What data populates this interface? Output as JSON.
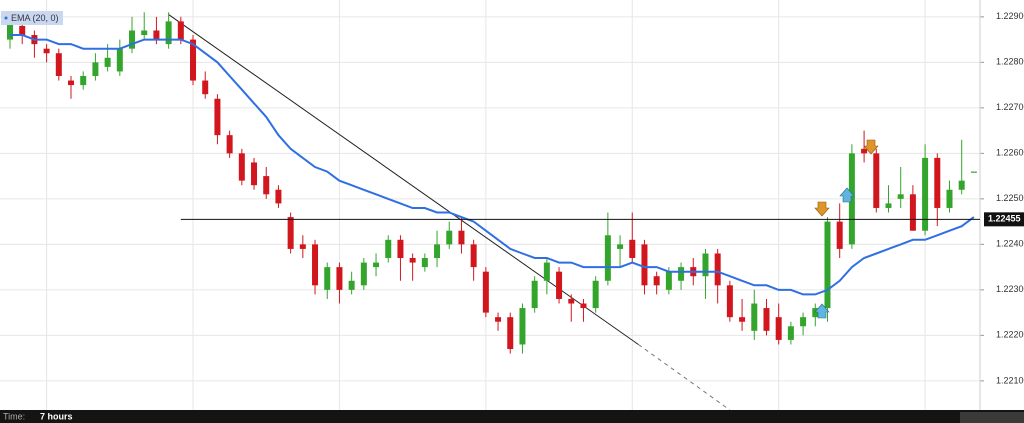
{
  "chart_data": {
    "type": "candlestick",
    "up_color": "#34a52c",
    "down_color": "#d2161e",
    "grid": true,
    "xlim": [
      -0.82,
      79.5
    ],
    "xticks": [
      3,
      15,
      27,
      39,
      51,
      63,
      75
    ],
    "ylim": [
      1.22036,
      1.22937
    ],
    "yticks": [
      {
        "value": 1.221,
        "label": "1.22100"
      },
      {
        "value": 1.222,
        "label": "1.22200"
      },
      {
        "value": 1.223,
        "label": "1.22300"
      },
      {
        "value": 1.224,
        "label": "1.22400"
      },
      {
        "value": 1.225,
        "label": "1.22500"
      },
      {
        "value": 1.226,
        "label": "1.22600"
      },
      {
        "value": 1.227,
        "label": "1.22700"
      },
      {
        "value": 1.228,
        "label": "1.22800"
      },
      {
        "value": 1.229,
        "label": "1.22900"
      }
    ],
    "open": [
      1.2285,
      1.2288,
      1.2286,
      1.2283,
      1.2282,
      1.2276,
      1.2275,
      1.2277,
      1.2279,
      1.2278,
      1.2283,
      1.2286,
      1.2287,
      1.2284,
      1.2289,
      1.2285,
      1.2276,
      1.2272,
      1.2264,
      1.226,
      1.2258,
      1.2255,
      1.2252,
      1.2246,
      1.224,
      1.224,
      1.223,
      1.2235,
      1.223,
      1.2231,
      1.2235,
      1.2237,
      1.2241,
      1.2237,
      1.2235,
      1.2237,
      1.224,
      1.2243,
      1.224,
      1.2234,
      1.2224,
      1.2224,
      1.2218,
      1.2226,
      1.2232,
      1.2234,
      1.2228,
      1.2227,
      1.2226,
      1.2232,
      1.2239,
      1.2241,
      1.224,
      1.2233,
      1.223,
      1.2232,
      1.2235,
      1.2233,
      1.2238,
      1.2231,
      1.2224,
      1.2221,
      1.2226,
      1.2224,
      1.2219,
      1.2222,
      1.2224,
      1.2226,
      1.2245,
      1.224,
      1.2261,
      1.226,
      1.2248,
      1.225,
      1.2251,
      1.2243,
      1.2259,
      1.2248,
      1.2252,
      1.2256
    ],
    "high": [
      1.229,
      1.2289,
      1.2287,
      1.2284,
      1.2283,
      1.2277,
      1.2278,
      1.2282,
      1.2284,
      1.2285,
      1.229,
      1.2291,
      1.229,
      1.2291,
      1.229,
      1.2286,
      1.2278,
      1.2273,
      1.2265,
      1.2261,
      1.2259,
      1.2257,
      1.2253,
      1.2247,
      1.2242,
      1.2241,
      1.2236,
      1.2236,
      1.2234,
      1.2237,
      1.2238,
      1.2242,
      1.2242,
      1.2238,
      1.2238,
      1.2243,
      1.2245,
      1.2246,
      1.2241,
      1.2235,
      1.2225,
      1.2225,
      1.2227,
      1.2233,
      1.2237,
      1.2235,
      1.2229,
      1.2228,
      1.2233,
      1.2247,
      1.2242,
      1.2247,
      1.2241,
      1.2234,
      1.2235,
      1.2236,
      1.2237,
      1.2239,
      1.2239,
      1.2232,
      1.2228,
      1.223,
      1.2228,
      1.2227,
      1.2223,
      1.2225,
      1.2227,
      1.2246,
      1.2249,
      1.2262,
      1.2265,
      1.2261,
      1.2253,
      1.2257,
      1.2253,
      1.2262,
      1.226,
      1.2254,
      1.2263,
      1.2256
    ],
    "low": [
      1.2283,
      1.2284,
      1.2281,
      1.228,
      1.2276,
      1.2272,
      1.2274,
      1.2276,
      1.2278,
      1.2277,
      1.2282,
      1.2285,
      1.2284,
      1.2283,
      1.2284,
      1.2275,
      1.2272,
      1.2262,
      1.2259,
      1.2253,
      1.2252,
      1.225,
      1.2248,
      1.2238,
      1.2237,
      1.2229,
      1.2228,
      1.2227,
      1.2229,
      1.223,
      1.2233,
      1.2236,
      1.2232,
      1.2232,
      1.2234,
      1.2235,
      1.2239,
      1.2238,
      1.2232,
      1.2224,
      1.2221,
      1.2216,
      1.2216,
      1.2225,
      1.2229,
      1.2227,
      1.2223,
      1.2223,
      1.2225,
      1.2231,
      1.2235,
      1.2236,
      1.2229,
      1.2229,
      1.2229,
      1.223,
      1.2231,
      1.2228,
      1.2227,
      1.2223,
      1.2221,
      1.2219,
      1.222,
      1.2218,
      1.2218,
      1.222,
      1.2222,
      1.2223,
      1.2237,
      1.2239,
      1.2258,
      1.2247,
      1.2247,
      1.2248,
      1.2243,
      1.2242,
      1.2244,
      1.2247,
      1.2251,
      1.2256
    ],
    "close": [
      1.2289,
      1.2286,
      1.2284,
      1.2282,
      1.2277,
      1.2275,
      1.2277,
      1.228,
      1.2281,
      1.2283,
      1.2287,
      1.2287,
      1.2285,
      1.2289,
      1.2285,
      1.2276,
      1.2273,
      1.2264,
      1.226,
      1.2254,
      1.2253,
      1.2251,
      1.2249,
      1.2239,
      1.2239,
      1.2231,
      1.2235,
      1.223,
      1.2232,
      1.2236,
      1.2236,
      1.2241,
      1.2237,
      1.2236,
      1.2237,
      1.224,
      1.2243,
      1.224,
      1.2235,
      1.2225,
      1.2223,
      1.2217,
      1.2226,
      1.2232,
      1.2236,
      1.2228,
      1.2227,
      1.2226,
      1.2232,
      1.2242,
      1.224,
      1.2237,
      1.2231,
      1.2231,
      1.2234,
      1.2235,
      1.2233,
      1.2238,
      1.2231,
      1.2224,
      1.2223,
      1.2227,
      1.2221,
      1.2219,
      1.2222,
      1.2224,
      1.2226,
      1.2245,
      1.2239,
      1.226,
      1.226,
      1.2248,
      1.2249,
      1.2251,
      1.2243,
      1.2259,
      1.2248,
      1.2252,
      1.2254,
      1.2256
    ],
    "indicators": [
      {
        "name": "EMA (20, 0)",
        "color": "#2f6fe4",
        "values": [
          1.2286,
          1.2286,
          1.2285,
          1.2285,
          1.2284,
          1.2284,
          1.2283,
          1.2283,
          1.2283,
          1.2283,
          1.2284,
          1.2285,
          1.2285,
          1.2285,
          1.2285,
          1.2284,
          1.2282,
          1.228,
          1.2277,
          1.2274,
          1.2271,
          1.2268,
          1.2264,
          1.2261,
          1.2259,
          1.2257,
          1.2256,
          1.2254,
          1.2253,
          1.2252,
          1.2251,
          1.225,
          1.2249,
          1.2248,
          1.2248,
          1.2247,
          1.2247,
          1.2246,
          1.2245,
          1.2243,
          1.2241,
          1.2239,
          1.2238,
          1.2237,
          1.2237,
          1.2236,
          1.2236,
          1.2235,
          1.2235,
          1.2235,
          1.2235,
          1.2236,
          1.2235,
          1.2235,
          1.2234,
          1.2234,
          1.2234,
          1.2234,
          1.2234,
          1.2233,
          1.2232,
          1.2231,
          1.2231,
          1.223,
          1.223,
          1.2229,
          1.2229,
          1.223,
          1.2232,
          1.2235,
          1.2237,
          1.2238,
          1.2239,
          1.224,
          1.2241,
          1.2241,
          1.2242,
          1.2243,
          1.2244,
          1.2246
        ]
      }
    ],
    "hline": {
      "from": 14,
      "value": 1.22455,
      "label": "1.22455"
    },
    "trendline": {
      "x": [
        13,
        51.5,
        59
      ],
      "y": [
        1.22905,
        1.2218,
        1.22036
      ]
    }
  },
  "toolbar": {
    "label": "Time:",
    "value": "7 hours"
  }
}
